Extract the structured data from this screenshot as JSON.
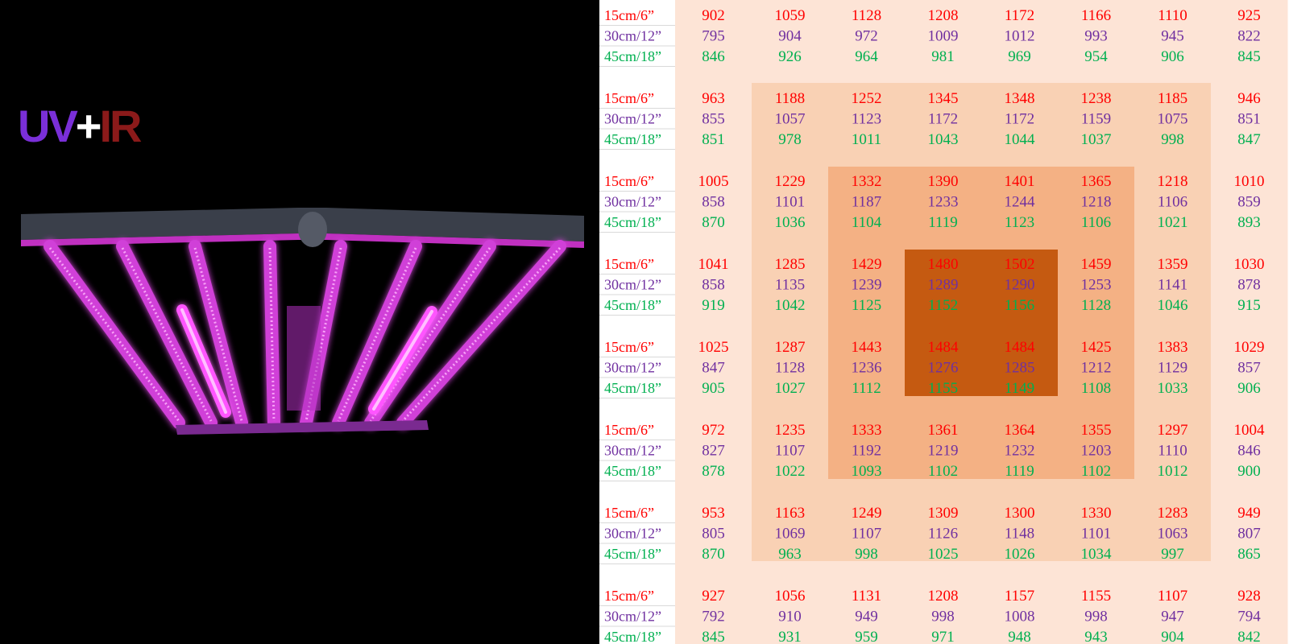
{
  "product": {
    "badge_uv": "UV",
    "badge_plus": "+",
    "badge_ir": "IR",
    "badge_colors": {
      "uv": "#7a2fd8",
      "plus": "#ffffff",
      "ir": "#8b1a1a"
    },
    "fixture_color": "#d040d8",
    "uv_bar_color": "#ff66ff"
  },
  "chart_data": {
    "type": "heatmap",
    "heights": [
      "15cm/6”",
      "30cm/12”",
      "45cm/18”"
    ],
    "height_colors": [
      "#ff0000",
      "#7030a0",
      "#00b050"
    ],
    "zone_colors": [
      "#fde4d6",
      "#f9d1b4",
      "#f4b184",
      "#c55a11"
    ],
    "rows": [
      {
        "zone": [
          0,
          0,
          0,
          0,
          0,
          0,
          0,
          0
        ],
        "values": [
          [
            902,
            795,
            846
          ],
          [
            1059,
            904,
            926
          ],
          [
            1128,
            972,
            964
          ],
          [
            1208,
            1009,
            981
          ],
          [
            1172,
            1012,
            969
          ],
          [
            1166,
            993,
            954
          ],
          [
            1110,
            945,
            906
          ],
          [
            925,
            822,
            845
          ]
        ]
      },
      {
        "zone": [
          0,
          1,
          1,
          1,
          1,
          1,
          1,
          0
        ],
        "values": [
          [
            963,
            855,
            851
          ],
          [
            1188,
            1057,
            978
          ],
          [
            1252,
            1123,
            1011
          ],
          [
            1345,
            1172,
            1043
          ],
          [
            1348,
            1172,
            1044
          ],
          [
            1238,
            1159,
            1037
          ],
          [
            1185,
            1075,
            998
          ],
          [
            946,
            851,
            847
          ]
        ]
      },
      {
        "zone": [
          0,
          1,
          2,
          2,
          2,
          2,
          1,
          0
        ],
        "values": [
          [
            1005,
            858,
            870
          ],
          [
            1229,
            1101,
            1036
          ],
          [
            1332,
            1187,
            1104
          ],
          [
            1390,
            1233,
            1119
          ],
          [
            1401,
            1244,
            1123
          ],
          [
            1365,
            1218,
            1106
          ],
          [
            1218,
            1106,
            1021
          ],
          [
            1010,
            859,
            893
          ]
        ]
      },
      {
        "zone": [
          0,
          1,
          2,
          3,
          3,
          2,
          1,
          0
        ],
        "values": [
          [
            1041,
            858,
            919
          ],
          [
            1285,
            1135,
            1042
          ],
          [
            1429,
            1239,
            1125
          ],
          [
            1480,
            1289,
            1152
          ],
          [
            1502,
            1290,
            1156
          ],
          [
            1459,
            1253,
            1128
          ],
          [
            1359,
            1141,
            1046
          ],
          [
            1030,
            878,
            915
          ]
        ]
      },
      {
        "zone": [
          0,
          1,
          2,
          3,
          3,
          2,
          1,
          0
        ],
        "values": [
          [
            1025,
            847,
            905
          ],
          [
            1287,
            1128,
            1027
          ],
          [
            1443,
            1236,
            1112
          ],
          [
            1484,
            1276,
            1155
          ],
          [
            1484,
            1285,
            1149
          ],
          [
            1425,
            1212,
            1108
          ],
          [
            1383,
            1129,
            1033
          ],
          [
            1029,
            857,
            906
          ]
        ]
      },
      {
        "zone": [
          0,
          1,
          2,
          2,
          2,
          2,
          1,
          0
        ],
        "values": [
          [
            972,
            827,
            878
          ],
          [
            1235,
            1107,
            1022
          ],
          [
            1333,
            1192,
            1093
          ],
          [
            1361,
            1219,
            1102
          ],
          [
            1364,
            1232,
            1119
          ],
          [
            1355,
            1203,
            1102
          ],
          [
            1297,
            1110,
            1012
          ],
          [
            1004,
            846,
            900
          ]
        ]
      },
      {
        "zone": [
          0,
          1,
          1,
          1,
          1,
          1,
          1,
          0
        ],
        "values": [
          [
            953,
            805,
            870
          ],
          [
            1163,
            1069,
            963
          ],
          [
            1249,
            1107,
            998
          ],
          [
            1309,
            1126,
            1025
          ],
          [
            1300,
            1148,
            1026
          ],
          [
            1330,
            1101,
            1034
          ],
          [
            1283,
            1063,
            997
          ],
          [
            949,
            807,
            865
          ]
        ]
      },
      {
        "zone": [
          0,
          0,
          0,
          0,
          0,
          0,
          0,
          0
        ],
        "values": [
          [
            927,
            792,
            845
          ],
          [
            1056,
            910,
            931
          ],
          [
            1131,
            949,
            959
          ],
          [
            1208,
            998,
            971
          ],
          [
            1157,
            1008,
            948
          ],
          [
            1155,
            998,
            943
          ],
          [
            1107,
            947,
            904
          ],
          [
            928,
            794,
            842
          ]
        ]
      }
    ]
  }
}
